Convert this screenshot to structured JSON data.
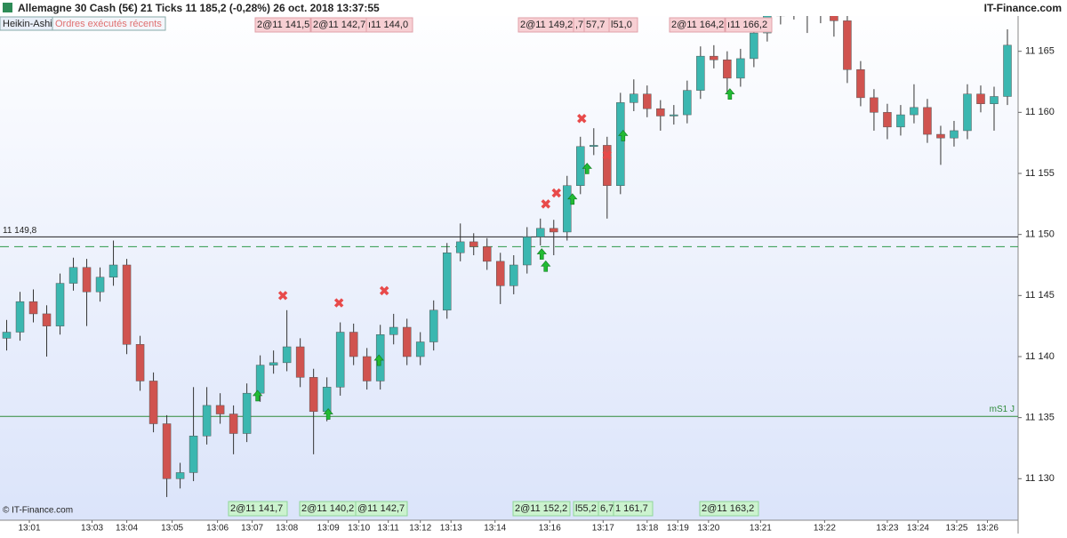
{
  "chart_data": {
    "type": "candlestick",
    "title": "Allemagne 30 Cash (5€)   21 Ticks   11 185,2 (-0,28%)   26 oct. 2018 13:37:55",
    "brand": "IT-Finance.com",
    "style_label": "Heikin-Ashi",
    "orders_label": "Ordres exécutés récents",
    "copyright": "© IT-Finance.com",
    "up_color": "#3bb7b0",
    "down_color": "#d0534f",
    "opens": [
      11141.5,
      11142,
      11144.5,
      11143.5,
      11142.5,
      11146,
      11147.3,
      11145.3,
      11146.5,
      11147.5,
      11141,
      11138,
      11134.5,
      11130,
      11130.5,
      11133.5,
      11136,
      11135.3,
      11133.7,
      11137,
      11139.3,
      11139.5,
      11140.8,
      11138.3,
      11135.5,
      11137.5,
      11142,
      11140,
      11138,
      11141.8,
      11142.4,
      11140,
      11141.2,
      11143.8,
      11148.5,
      11149.4,
      11149,
      11147.8,
      11145.8,
      11147.5,
      11149.8,
      11150.5,
      11150.2,
      11154,
      11157.2,
      11157.3,
      11154,
      11160.8,
      11161.5,
      11160.3,
      11159.7,
      11159.8,
      11161.8,
      11164.6,
      11164.3,
      11162.8,
      11164.4,
      11166.5,
      11167.9,
      11168.5,
      11168.3,
      11168.1,
      11168,
      11167.5,
      11163.5,
      11161.2,
      11160,
      11158.8,
      11159.8,
      11160.4,
      11158.2,
      11157.9,
      11158.5,
      11161.5,
      11160.7,
      11161.3
    ],
    "closes": [
      11142,
      11144.5,
      11143.5,
      11142.5,
      11146,
      11147.3,
      11145.3,
      11146.5,
      11147.5,
      11141,
      11138,
      11134.5,
      11130,
      11130.5,
      11133.5,
      11136,
      11135.3,
      11133.7,
      11137,
      11139.3,
      11139.5,
      11140.8,
      11138.3,
      11135.5,
      11137.5,
      11142,
      11140,
      11138,
      11141.8,
      11142.4,
      11140,
      11141.2,
      11143.8,
      11148.5,
      11149.4,
      11149,
      11147.8,
      11145.8,
      11147.5,
      11149.8,
      11150.5,
      11150.2,
      11154,
      11157.2,
      11157.3,
      11154,
      11160.8,
      11161.5,
      11160.3,
      11159.7,
      11159.8,
      11161.8,
      11164.6,
      11164.3,
      11162.8,
      11164.4,
      11166.5,
      11167.9,
      11168.5,
      11168.3,
      11168.1,
      11168,
      11167.5,
      11163.5,
      11161.2,
      11160,
      11158.8,
      11159.8,
      11160.4,
      11158.2,
      11157.9,
      11158.5,
      11161.5,
      11160.7,
      11161.3,
      11165.5
    ],
    "highs": [
      11143,
      11145.3,
      11145.5,
      11144.2,
      11146.8,
      11148.1,
      11148,
      11147.3,
      11149.5,
      11148,
      11141.7,
      11138.7,
      11135.2,
      11131.3,
      11137.5,
      11137.5,
      11137,
      11136,
      11137.8,
      11140.1,
      11140.5,
      11143.8,
      11141.5,
      11139,
      11138.3,
      11142.8,
      11142.7,
      11140.7,
      11142.6,
      11143.5,
      11143.1,
      11142,
      11144.6,
      11149.3,
      11150.9,
      11150.1,
      11149.7,
      11148.5,
      11148.3,
      11150.6,
      11151.3,
      11151.2,
      11154.8,
      11158,
      11158.7,
      11158,
      11161.6,
      11162.7,
      11162.2,
      11161,
      11160.6,
      11162.6,
      11165.4,
      11165.5,
      11165,
      11165.2,
      11167.3,
      11168.7,
      11169.3,
      11169.2,
      11169,
      11168.9,
      11168.7,
      11168.2,
      11164.2,
      11161.9,
      11160.7,
      11160.6,
      11162.3,
      11161.1,
      11158.9,
      11159.3,
      11162.3,
      11162.2,
      11162.1,
      11166.8
    ],
    "lows": [
      11140.5,
      11141.3,
      11142.8,
      11140,
      11141.8,
      11145.4,
      11142.5,
      11144.5,
      11145.8,
      11140.2,
      11137.2,
      11133.8,
      11128.5,
      11129.2,
      11129.8,
      11132.8,
      11134.5,
      11132,
      11133,
      11136.3,
      11138.6,
      11138.8,
      11137.5,
      11132,
      11134.7,
      11136.8,
      11139.3,
      11137.3,
      11137.3,
      11141,
      11139.3,
      11139.3,
      11140.5,
      11143.1,
      11147.8,
      11148.3,
      11147.1,
      11144.3,
      11145.1,
      11146.8,
      11149.1,
      11148.3,
      11149.5,
      11153.3,
      11156.5,
      11151.3,
      11153.3,
      11160.1,
      11159.6,
      11158.5,
      11159,
      11159.1,
      11161.1,
      11163.6,
      11161.5,
      11162.1,
      11163.7,
      11165.8,
      11167.2,
      11167.6,
      11166.5,
      11167.3,
      11166.2,
      11162.4,
      11160.5,
      11158.5,
      11157.8,
      11158.1,
      11159.1,
      11157.5,
      11155.7,
      11157.2,
      11157.8,
      11160,
      11158.5,
      11160.6
    ],
    "xlim": [
      -0.5,
      75.8
    ],
    "ylim": [
      11126.6,
      11169.2
    ],
    "xticks": [
      {
        "value": 1.7,
        "label": "13:01"
      },
      {
        "value": 6.4,
        "label": "13:03"
      },
      {
        "value": 9.0,
        "label": "13:04"
      },
      {
        "value": 12.4,
        "label": "13:05"
      },
      {
        "value": 15.8,
        "label": "13:06"
      },
      {
        "value": 18.4,
        "label": "13:07"
      },
      {
        "value": 21.0,
        "label": "13:08"
      },
      {
        "value": 24.1,
        "label": "13:09"
      },
      {
        "value": 26.4,
        "label": "13:10"
      },
      {
        "value": 28.6,
        "label": "13:11"
      },
      {
        "value": 31.0,
        "label": "13:12"
      },
      {
        "value": 33.3,
        "label": "13:13"
      },
      {
        "value": 36.6,
        "label": "13:14"
      },
      {
        "value": 40.7,
        "label": "13:16"
      },
      {
        "value": 44.7,
        "label": "13:17"
      },
      {
        "value": 48.0,
        "label": "13:18"
      },
      {
        "value": 50.3,
        "label": "13:19"
      },
      {
        "value": 52.6,
        "label": "13:20"
      },
      {
        "value": 56.5,
        "label": "13:21"
      },
      {
        "value": 61.3,
        "label": "13:22"
      },
      {
        "value": 66.0,
        "label": "13:23"
      },
      {
        "value": 68.3,
        "label": "13:24"
      },
      {
        "value": 71.2,
        "label": "13:25"
      },
      {
        "value": 73.5,
        "label": "13:26"
      }
    ],
    "yticks": [
      {
        "value": 11130,
        "label": "11 130"
      },
      {
        "value": 11135,
        "label": "11 135"
      },
      {
        "value": 11140,
        "label": "11 140"
      },
      {
        "value": 11145,
        "label": "11 145"
      },
      {
        "value": 11150,
        "label": "11 150"
      },
      {
        "value": 11155,
        "label": "11 155"
      },
      {
        "value": 11160,
        "label": "11 160"
      },
      {
        "value": 11165,
        "label": "11 165"
      }
    ],
    "price_line": {
      "value": 11149.8,
      "label": "11 149,8"
    },
    "level_dashed": 11149.0,
    "pivot_line": {
      "value": 11135.1,
      "label": "mS1 J"
    },
    "sell_markers": {
      "x": [
        20.7,
        24.9,
        28.3,
        40.4,
        41.2,
        43.1,
        45.0
      ],
      "y": [
        11145,
        11144.4,
        11145.4,
        11152.5,
        11153.4,
        11159.5,
        11156.5
      ]
    },
    "buy_markers": {
      "x": [
        18.8,
        24.1,
        27.9,
        40.1,
        40.4,
        42.4,
        43.5,
        46.2,
        54.2
      ],
      "y": [
        11136.8,
        11135.3,
        11139.7,
        11148.4,
        11147.4,
        11152.9,
        11155.4,
        11158.1,
        11161.5
      ]
    },
    "sell_orders": [
      "2@11 141,5",
      "2@11 142,7",
      "ı11 144,0",
      "2@11 149,2",
      ",7",
      "57,7",
      "l51,0",
      "2@11 164,2",
      "ı11 166,2"
    ],
    "buy_orders": [
      "2@11 141,7",
      "2@11 140,2",
      "@11 142,7",
      "2@11 152,2",
      "l55,2",
      "6,7",
      "1 161,7",
      "2@11 163,2"
    ]
  }
}
